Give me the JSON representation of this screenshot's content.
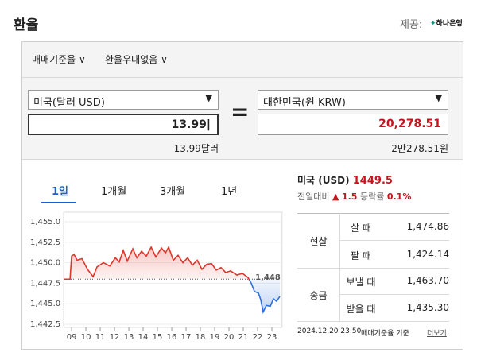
{
  "header": {
    "title": "환율",
    "provider_label": "제공:",
    "provider": "하나은행"
  },
  "options": {
    "rate_type": "매매기준율",
    "discount": "환율우대없음"
  },
  "converter": {
    "from_currency": "미국(달러 USD)",
    "from_amount": "13.99",
    "from_text": "13.99달러",
    "to_currency": "대한민국(원 KRW)",
    "to_amount": "20,278.51",
    "to_text": "2만278.51원"
  },
  "tabs": [
    "1일",
    "1개월",
    "3개월",
    "1년"
  ],
  "summary": {
    "currency": "미국 (USD)",
    "rate": "1449.5",
    "change_label": "전일대비",
    "change": "1.5",
    "rate_label": "등락률",
    "change_rate": "0.1%"
  },
  "rates_table": {
    "groups": [
      {
        "name": "현찰",
        "rows": [
          [
            "살 때",
            "1,474.86"
          ],
          [
            "팔 때",
            "1,424.14"
          ]
        ]
      },
      {
        "name": "송금",
        "rows": [
          [
            "보낼 때",
            "1,463.70"
          ],
          [
            "받을 때",
            "1,435.30"
          ]
        ]
      }
    ]
  },
  "footer": {
    "timestamp": "2024.12.20 23:50",
    "basis": "매매기준율 기준",
    "more": "더보기"
  },
  "chart_data": {
    "type": "line",
    "x": [
      8.44,
      8.89,
      9.0,
      9.17,
      9.39,
      9.72,
      10.11,
      10.5,
      10.78,
      11.22,
      11.67,
      12.06,
      12.33,
      12.61,
      12.89,
      13.28,
      13.56,
      13.89,
      14.22,
      14.56,
      14.89,
      15.28,
      15.56,
      15.78,
      16.11,
      16.44,
      16.78,
      17.11,
      17.44,
      17.78,
      18.11,
      18.44,
      18.78,
      19.11,
      19.44,
      19.78,
      20.11,
      20.56,
      20.94,
      21.33,
      21.56,
      21.78,
      22.06,
      22.22,
      22.39,
      22.61,
      22.89,
      23.11,
      23.33,
      23.56
    ],
    "values": [
      1448.0,
      1448.0,
      1450.8,
      1451.0,
      1450.3,
      1450.5,
      1449.2,
      1448.3,
      1449.5,
      1450.0,
      1449.6,
      1450.6,
      1450.1,
      1451.5,
      1450.2,
      1451.7,
      1450.6,
      1451.4,
      1450.8,
      1451.9,
      1450.7,
      1451.8,
      1451.2,
      1451.9,
      1450.3,
      1450.9,
      1450.0,
      1450.6,
      1449.7,
      1450.3,
      1449.2,
      1449.8,
      1449.9,
      1449.1,
      1449.4,
      1448.8,
      1449.0,
      1448.5,
      1448.7,
      1448.2,
      1447.5,
      1446.5,
      1446.3,
      1445.5,
      1444.0,
      1444.8,
      1444.7,
      1445.6,
      1445.3,
      1445.9
    ],
    "color": "#e0352b",
    "below_color": "#2e6fd9",
    "reference": {
      "value": 1448,
      "label": "1,448"
    },
    "xlim": [
      8.44,
      23.6
    ],
    "xticks": [
      {
        "value": 9,
        "label": "09"
      },
      10,
      11,
      12,
      13,
      14,
      15,
      16,
      17,
      18,
      19,
      20,
      21,
      22,
      23
    ],
    "ylim": [
      1442.3,
      1455.2
    ],
    "yticks": [
      {
        "value": 1442.5,
        "label": "1,442.5"
      },
      {
        "value": 1445,
        "label": "1,445.0"
      },
      {
        "value": 1447.5,
        "label": "1,447.5"
      },
      {
        "value": 1450,
        "label": "1,450.0"
      },
      {
        "value": 1452.5,
        "label": "1,452.5"
      },
      {
        "value": 1455,
        "label": "1,455.0"
      }
    ],
    "grid": true
  }
}
